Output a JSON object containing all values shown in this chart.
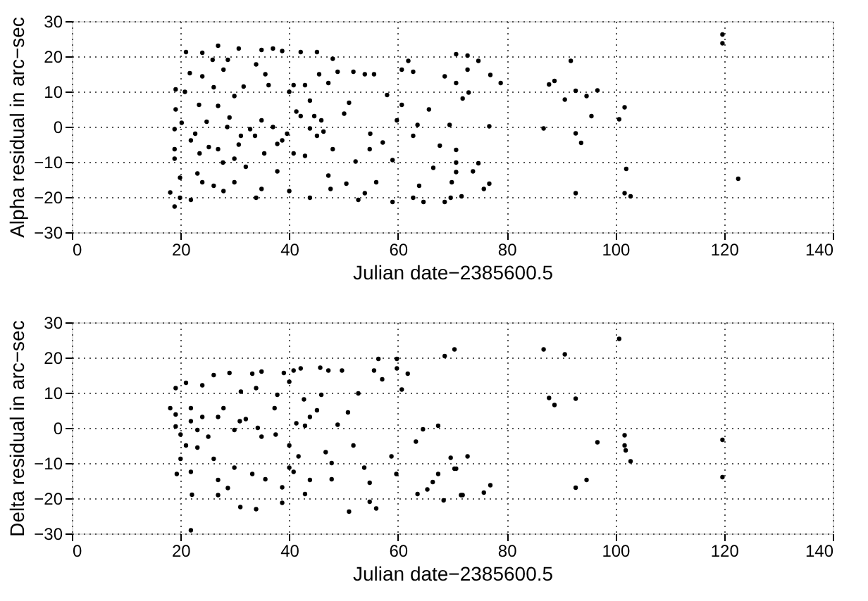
{
  "chart_data": [
    {
      "type": "scatter",
      "xlabel": "Julian date−2385600.5",
      "ylabel": "Alpha residual in arc−sec",
      "xlim": [
        0,
        140
      ],
      "ylim": [
        -30,
        30
      ],
      "xticks": [
        0,
        20,
        40,
        60,
        80,
        100,
        120,
        140
      ],
      "yticks": [
        -30,
        -20,
        -10,
        0,
        10,
        20,
        30
      ],
      "grid": true,
      "marker": "circle",
      "color": "#000000",
      "x": [
        70.7,
        72.8,
        74.8,
        72.8,
        77,
        70.7,
        78.9,
        71.9,
        73,
        76.8,
        70.7,
        70.7,
        74.8,
        70.7,
        73.8,
        76.8,
        75.8,
        71.7,
        91.8,
        87.8,
        88.8,
        92.7,
        90.7,
        94.7,
        96.7,
        95.6,
        86.8,
        92.7,
        93.7,
        101.7,
        100.7,
        102,
        101.7,
        102.8,
        92.7,
        119.7,
        119.7,
        122.6,
        18.9,
        18.1,
        19.9,
        19.9,
        19.1,
        19.1,
        18.9,
        18.9,
        18.9,
        21.9,
        21,
        21.7,
        20.8,
        22.7,
        23.1,
        24,
        24,
        24,
        23.4,
        24.8,
        25.9,
        26.1,
        26.9,
        26.9,
        26.1,
        26.9,
        27.9,
        27.9,
        28.7,
        29,
        29.9,
        29.9,
        30.7,
        31.1,
        31.6,
        32,
        29.9,
        33.9,
        33.9,
        34.9,
        34.9,
        34.9,
        33.7,
        35.6,
        36.2,
        37,
        37.8,
        38.7,
        38.7,
        40,
        40,
        40.8,
        41.3,
        42.1,
        42.9,
        43.8,
        43.8,
        45.1,
        45.5,
        46.3,
        47.2,
        48,
        47.6,
        47.2,
        48.9,
        50.1,
        51,
        50.5,
        51.8,
        52.2,
        52.7,
        53.9,
        53.9,
        54.8,
        54.9,
        56,
        55.6,
        57.2,
        58,
        59,
        59.8,
        59,
        60.7,
        60.7,
        61.9,
        62.8,
        62.8,
        62.8,
        63.6,
        63.9,
        64.7,
        65.7,
        66.5,
        67.7,
        68.6,
        68.6,
        69.5,
        69.9,
        69.7,
        20.2,
        21.9,
        23.5,
        25.2,
        27.8,
        28.6,
        30.7,
        32.8,
        35.4,
        37,
        37.8,
        39.6,
        40.8,
        42.9,
        45.1,
        45.9,
        48,
        43.8,
        42.1,
        44.6
      ],
      "values": [
        20.6,
        20.2,
        18.7,
        16.2,
        14.7,
        12.4,
        12.4,
        8,
        9.7,
        0.1,
        -6.6,
        -10.2,
        -10.4,
        -12.9,
        -12.7,
        -16.2,
        -17.7,
        -19.8,
        18.7,
        12,
        13,
        10.2,
        7.7,
        8.7,
        10.3,
        3,
        -0.5,
        -1.9,
        -4.6,
        5.5,
        2.1,
        -12,
        -18.9,
        -19.8,
        -18.9,
        26.2,
        23.7,
        -14.8,
        -22.7,
        -18.7,
        -14.5,
        -20.2,
        10.6,
        4.9,
        -0.7,
        -6.4,
        -9.1,
        -20.8,
        21.2,
        15.2,
        9.9,
        -2,
        -13.3,
        -15.8,
        21,
        14.3,
        6.2,
        1.4,
        19,
        11.2,
        23,
        5.9,
        -16.8,
        -6.4,
        16.2,
        -18.3,
        19,
        2.6,
        8.7,
        -15.8,
        22.2,
        -2.6,
        11.4,
        -11.4,
        -9.1,
        -20.2,
        17.7,
        21.8,
        -17.7,
        1.8,
        -2.6,
        14.9,
        11.8,
        22.2,
        -12.7,
        21.5,
        -3.9,
        9.9,
        -18.3,
        11.8,
        4.3,
        21.2,
        11.8,
        -20.2,
        7.4,
        21.2,
        14.9,
        -1.4,
        12.4,
        19.3,
        -17.7,
        -13.9,
        15.6,
        3.7,
        6.8,
        -16.2,
        15.6,
        -9.9,
        -20.8,
        14.9,
        -18.9,
        -6.4,
        -2,
        -15.8,
        14.9,
        -4.5,
        9,
        -9.5,
        1.8,
        -21.4,
        16.2,
        6.2,
        18.7,
        15.6,
        -2.6,
        -20.2,
        0.5,
        -16.8,
        -21.4,
        4.9,
        -11.7,
        -5.4,
        14.3,
        -21.4,
        0.5,
        -15.8,
        -20.2,
        1.1,
        -3.9,
        -7.6,
        -5.8,
        -10.2,
        -0.1,
        -5.1,
        -0.7,
        -7.6,
        -0.1,
        -4.9,
        -2,
        -7.6,
        -8.3,
        -2.6,
        1.8,
        -6.4,
        -0.5,
        3,
        3
      ]
    },
    {
      "type": "scatter",
      "xlabel": "Julian date−2385600.5",
      "ylabel": "Delta residual in arc−sec",
      "xlim": [
        0,
        140
      ],
      "ylim": [
        -30,
        30
      ],
      "xticks": [
        0,
        20,
        40,
        60,
        80,
        100,
        120,
        140
      ],
      "yticks": [
        -30,
        -20,
        -10,
        0,
        10,
        20,
        30
      ],
      "grid": true,
      "marker": "circle",
      "color": "#000000",
      "x": [
        21.9,
        18.1,
        19.1,
        19.1,
        19.1,
        20,
        20,
        19.3,
        21,
        21.9,
        21.9,
        21,
        21.9,
        22.1,
        23.1,
        24,
        24,
        25.1,
        26.1,
        26.1,
        26.9,
        26.9,
        27.9,
        29,
        28.7,
        29.9,
        29.9,
        31,
        31.1,
        32,
        33.2,
        33.2,
        33.9,
        33.9,
        34.9,
        34.9,
        35.6,
        37.3,
        37.8,
        38.7,
        39,
        40,
        40,
        40.8,
        40.8,
        42.1,
        42.7,
        42.9,
        42.9,
        43.8,
        45.1,
        45.7,
        45.9,
        46.7,
        47.2,
        47.8,
        47.8,
        48.9,
        49.7,
        50.8,
        51,
        51.8,
        52.7,
        53.8,
        54.8,
        54.8,
        55.6,
        56,
        56.4,
        57.1,
        58.8,
        59.7,
        59.8,
        59.8,
        60.7,
        61.8,
        63.3,
        63.6,
        64.6,
        65.4,
        66.4,
        67.4,
        67.4,
        68.4,
        68.6,
        70.4,
        69.7,
        70.4,
        71.6,
        43.8,
        41.3,
        37.5,
        34.2,
        30.9,
        26.9,
        23.1,
        38.7,
        40,
        41.7,
        72.8,
        70.7,
        71.9,
        75.8,
        77,
        86.8,
        90.7,
        87.8,
        88.8,
        92.7,
        96.7,
        92.7,
        94.7,
        100.7,
        101.7,
        101.7,
        101.9,
        102.8,
        119.7,
        119.7
      ],
      "values": [
        -29.1,
        5.6,
        11.3,
        3.8,
        0.4,
        -1.9,
        -8.8,
        -13.1,
        12.8,
        5.6,
        1.9,
        -5,
        -12.5,
        -19,
        -5.6,
        12.1,
        3.1,
        -2.5,
        15,
        -8.8,
        -14.8,
        -19.1,
        5.6,
        15.6,
        -17.1,
        -0.6,
        -11.3,
        -22.5,
        10.3,
        2.5,
        15.4,
        -13.1,
        -23.1,
        11.3,
        16,
        -2.5,
        -14.6,
        5.6,
        9.4,
        -21.3,
        15.6,
        13.1,
        -5,
        16.3,
        -12.5,
        16.9,
        8.1,
        0.6,
        -18.8,
        -14.8,
        5,
        17.1,
        9.4,
        -6.9,
        16.3,
        -14.6,
        -10,
        0.9,
        16.3,
        4.4,
        -23.8,
        -5,
        9.8,
        -11.3,
        -15.6,
        -21,
        16.3,
        -22.9,
        19.6,
        13.8,
        -8.1,
        -13.1,
        19.6,
        16.9,
        10.9,
        15.4,
        -3.9,
        -18.8,
        -0.4,
        -17.5,
        -15.4,
        0.6,
        -13.1,
        -20.6,
        20.4,
        22.3,
        -8.5,
        -11.6,
        -19.1,
        3.1,
        1.3,
        -1.9,
        0,
        1.9,
        3.1,
        -0.6,
        -16.9,
        -11.3,
        -8.1,
        -8.1,
        -11.6,
        -19.1,
        -18.4,
        -16.3,
        22.3,
        20.9,
        8.5,
        6.5,
        8.3,
        -4.1,
        -17,
        -14.8,
        25.3,
        -2.1,
        -5,
        -6.4,
        -9.5,
        -3.4,
        -14
      ]
    }
  ]
}
